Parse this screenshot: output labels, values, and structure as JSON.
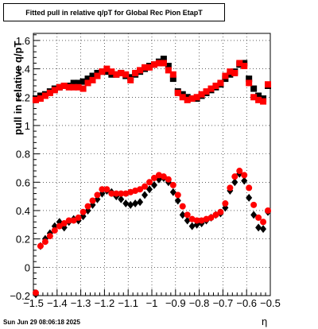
{
  "title": "Fitted pull in relative q/pT for Global Rec Pion EtapT",
  "timestamp": "Sun Jun 29 08:06:18 2025",
  "chart_data": {
    "type": "scatter",
    "title": "Fitted pull in relative q/pT for Global Rec Pion EtapT",
    "xlabel": "η",
    "ylabel": "pull in relative q/pT",
    "xlim": [
      -1.5,
      -0.5
    ],
    "ylim": [
      -0.2,
      1.65
    ],
    "xticks": [
      -1.5,
      -1.4,
      -1.3,
      -1.2,
      -1.1,
      -1,
      -0.9,
      -0.8,
      -0.7,
      -0.6,
      -0.5
    ],
    "xtick_labels": [
      "−1.5",
      "−1.4",
      "−1.3",
      "−1.2",
      "−1.1",
      "−1",
      "−0.9",
      "−0.8",
      "−0.7",
      "−0.6",
      "−0.5"
    ],
    "yticks": [
      -0.2,
      0,
      0.2,
      0.4,
      0.6,
      0.8,
      1,
      1.2,
      1.4,
      1.6
    ],
    "ytick_labels": [
      "−0.2",
      "0",
      "0.2",
      "0.4",
      "0.6",
      "0.8",
      "1",
      "1.2",
      "1.4",
      "1.6"
    ],
    "grid": true,
    "x": [
      -1.49,
      -1.47,
      -1.45,
      -1.43,
      -1.41,
      -1.39,
      -1.37,
      -1.35,
      -1.33,
      -1.31,
      -1.29,
      -1.27,
      -1.25,
      -1.23,
      -1.21,
      -1.19,
      -1.17,
      -1.15,
      -1.13,
      -1.11,
      -1.09,
      -1.07,
      -1.05,
      -1.03,
      -1.01,
      -0.99,
      -0.97,
      -0.95,
      -0.93,
      -0.91,
      -0.89,
      -0.87,
      -0.85,
      -0.83,
      -0.81,
      -0.79,
      -0.77,
      -0.75,
      -0.73,
      -0.71,
      -0.69,
      -0.67,
      -0.65,
      -0.63,
      -0.61,
      -0.59,
      -0.57,
      -0.55,
      -0.53,
      -0.51
    ],
    "series": [
      {
        "marker": "square",
        "color": "#000000",
        "values": [
          1.19,
          1.21,
          1.22,
          1.24,
          1.26,
          1.27,
          1.28,
          1.28,
          1.3,
          1.3,
          1.31,
          1.33,
          1.35,
          1.37,
          1.38,
          1.38,
          1.36,
          1.36,
          1.37,
          1.35,
          1.34,
          1.36,
          1.38,
          1.4,
          1.42,
          1.43,
          1.45,
          1.47,
          1.42,
          1.33,
          1.24,
          1.22,
          1.2,
          1.19,
          1.19,
          1.21,
          1.23,
          1.25,
          1.27,
          1.29,
          1.33,
          1.36,
          1.38,
          1.43,
          1.44,
          1.33,
          1.26,
          1.21,
          1.19,
          1.28
        ]
      },
      {
        "marker": "square",
        "color": "#ff0000",
        "values": [
          1.18,
          1.19,
          1.21,
          1.23,
          1.25,
          1.27,
          1.28,
          1.27,
          1.27,
          1.27,
          1.26,
          1.3,
          1.32,
          1.35,
          1.38,
          1.4,
          1.38,
          1.36,
          1.37,
          1.36,
          1.32,
          1.37,
          1.39,
          1.41,
          1.41,
          1.43,
          1.44,
          1.44,
          1.39,
          1.36,
          1.23,
          1.2,
          1.18,
          1.19,
          1.2,
          1.22,
          1.24,
          1.26,
          1.28,
          1.3,
          1.35,
          1.38,
          1.37,
          1.44,
          1.42,
          1.3,
          1.2,
          1.18,
          1.17,
          1.29
        ]
      },
      {
        "marker": "diamond",
        "color": "#000000",
        "values": [
          -0.19,
          0.15,
          0.2,
          0.24,
          0.29,
          0.32,
          0.28,
          0.32,
          0.34,
          0.33,
          0.36,
          0.4,
          0.44,
          0.48,
          0.52,
          0.54,
          0.53,
          0.5,
          0.48,
          0.45,
          0.44,
          0.45,
          0.46,
          0.51,
          0.55,
          0.58,
          0.62,
          0.63,
          0.6,
          0.53,
          0.47,
          0.37,
          0.33,
          0.29,
          0.3,
          0.31,
          0.33,
          0.35,
          0.37,
          0.38,
          0.42,
          0.54,
          0.6,
          0.66,
          0.61,
          0.49,
          0.37,
          0.28,
          0.27,
          0.39
        ]
      },
      {
        "marker": "circle",
        "color": "#ff0000",
        "values": [
          -0.18,
          0.15,
          0.18,
          0.22,
          0.26,
          0.29,
          0.31,
          0.33,
          0.33,
          0.35,
          0.39,
          0.43,
          0.47,
          0.51,
          0.55,
          0.55,
          0.52,
          0.52,
          0.52,
          0.52,
          0.53,
          0.54,
          0.55,
          0.57,
          0.6,
          0.63,
          0.65,
          0.64,
          0.62,
          0.58,
          0.51,
          0.43,
          0.37,
          0.34,
          0.33,
          0.33,
          0.34,
          0.35,
          0.37,
          0.39,
          0.45,
          0.56,
          0.64,
          0.68,
          0.65,
          0.56,
          0.44,
          0.35,
          0.32,
          0.4
        ]
      }
    ]
  }
}
